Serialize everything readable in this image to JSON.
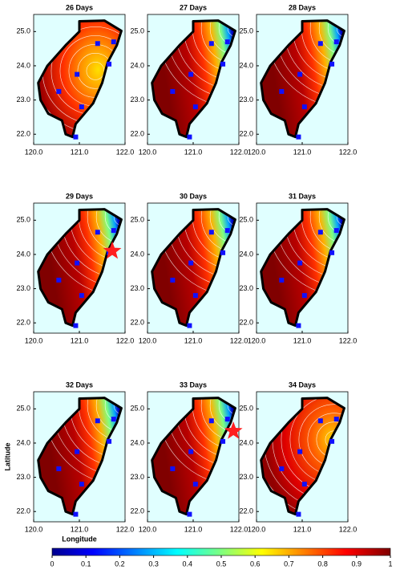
{
  "chart_data": [
    {
      "type": "map",
      "title": "26 Days",
      "xlim": [
        120,
        122
      ],
      "ylim": [
        21.7,
        25.5
      ],
      "xticks": [
        {
          "value": 120,
          "label": "120.0"
        },
        {
          "value": 121,
          "label": "121.0"
        },
        {
          "value": 122,
          "label": "122.0"
        }
      ],
      "yticks": [
        {
          "value": 22,
          "label": "22.0"
        },
        {
          "value": 23,
          "label": "23.0"
        },
        {
          "value": 24,
          "label": "24.0"
        },
        {
          "value": 25,
          "label": "25.0"
        }
      ],
      "stations": {
        "lon": [
          121.4,
          121.75,
          121.65,
          120.95,
          120.55,
          121.05,
          120.92
        ],
        "lat": [
          24.65,
          24.7,
          24.05,
          23.75,
          23.25,
          22.8,
          21.92
        ]
      }
    },
    {
      "type": "map",
      "title": "27 Days",
      "xlim": [
        120,
        122
      ],
      "ylim": [
        21.7,
        25.5
      ],
      "xticks": [
        {
          "value": 120,
          "label": "120.0"
        },
        {
          "value": 121,
          "label": "121.0"
        },
        {
          "value": 122,
          "label": "122.0"
        }
      ],
      "yticks": [
        {
          "value": 22,
          "label": "22.0"
        },
        {
          "value": 23,
          "label": "23.0"
        },
        {
          "value": 24,
          "label": "24.0"
        },
        {
          "value": 25,
          "label": "25.0"
        }
      ],
      "stations": {
        "lon": [
          121.4,
          121.75,
          121.65,
          120.95,
          120.55,
          121.05,
          120.92
        ],
        "lat": [
          24.65,
          24.7,
          24.05,
          23.75,
          23.25,
          22.8,
          21.92
        ]
      }
    },
    {
      "type": "map",
      "title": "28 Days",
      "xlim": [
        120,
        122
      ],
      "ylim": [
        21.7,
        25.5
      ],
      "xticks": [
        {
          "value": 120,
          "label": "120.0"
        },
        {
          "value": 121,
          "label": "121.0"
        },
        {
          "value": 122,
          "label": "122.0"
        }
      ],
      "yticks": [
        {
          "value": 22,
          "label": "22.0"
        },
        {
          "value": 23,
          "label": "23.0"
        },
        {
          "value": 24,
          "label": "24.0"
        },
        {
          "value": 25,
          "label": "25.0"
        }
      ],
      "stations": {
        "lon": [
          121.4,
          121.75,
          121.65,
          120.95,
          120.55,
          121.05,
          120.92
        ],
        "lat": [
          24.65,
          24.7,
          24.05,
          23.75,
          23.25,
          22.8,
          21.92
        ]
      }
    },
    {
      "type": "map",
      "title": "29 Days",
      "xlim": [
        120,
        122
      ],
      "ylim": [
        21.7,
        25.5
      ],
      "xticks": [
        {
          "value": 120,
          "label": "120.0"
        },
        {
          "value": 121,
          "label": "121.0"
        },
        {
          "value": 122,
          "label": "122.0"
        }
      ],
      "yticks": [
        {
          "value": 22,
          "label": "22.0"
        },
        {
          "value": 23,
          "label": "23.0"
        },
        {
          "value": 24,
          "label": "24.0"
        },
        {
          "value": 25,
          "label": "25.0"
        }
      ],
      "stations": {
        "lon": [
          121.4,
          121.75,
          121.65,
          120.95,
          120.55,
          121.05,
          120.92
        ],
        "lat": [
          24.65,
          24.7,
          24.05,
          23.75,
          23.25,
          22.8,
          21.92
        ]
      },
      "star": {
        "lon": 121.72,
        "lat": 24.1
      }
    },
    {
      "type": "map",
      "title": "30 Days",
      "xlim": [
        120,
        122
      ],
      "ylim": [
        21.7,
        25.5
      ],
      "xticks": [
        {
          "value": 120,
          "label": "120.0"
        },
        {
          "value": 121,
          "label": "121.0"
        },
        {
          "value": 122,
          "label": "122.0"
        }
      ],
      "yticks": [
        {
          "value": 22,
          "label": "22.0"
        },
        {
          "value": 23,
          "label": "23.0"
        },
        {
          "value": 24,
          "label": "24.0"
        },
        {
          "value": 25,
          "label": "25.0"
        }
      ],
      "stations": {
        "lon": [
          121.4,
          121.75,
          121.65,
          120.95,
          120.55,
          121.05,
          120.92
        ],
        "lat": [
          24.65,
          24.7,
          24.05,
          23.75,
          23.25,
          22.8,
          21.92
        ]
      }
    },
    {
      "type": "map",
      "title": "31 Days",
      "xlim": [
        120,
        122
      ],
      "ylim": [
        21.7,
        25.5
      ],
      "xticks": [
        {
          "value": 120,
          "label": "120.0"
        },
        {
          "value": 121,
          "label": "121.0"
        },
        {
          "value": 122,
          "label": "122.0"
        }
      ],
      "yticks": [
        {
          "value": 22,
          "label": "22.0"
        },
        {
          "value": 23,
          "label": "23.0"
        },
        {
          "value": 24,
          "label": "24.0"
        },
        {
          "value": 25,
          "label": "25.0"
        }
      ],
      "stations": {
        "lon": [
          121.4,
          121.75,
          121.65,
          120.95,
          120.55,
          121.05,
          120.92
        ],
        "lat": [
          24.65,
          24.7,
          24.05,
          23.75,
          23.25,
          22.8,
          21.92
        ]
      }
    },
    {
      "type": "map",
      "title": "32 Days",
      "xlim": [
        120,
        122
      ],
      "ylim": [
        21.7,
        25.5
      ],
      "xlabel": "Longitude",
      "ylabel": "Latitude",
      "xticks": [
        {
          "value": 120,
          "label": "120.0"
        },
        {
          "value": 121,
          "label": "121.0"
        },
        {
          "value": 122,
          "label": "122.0"
        }
      ],
      "yticks": [
        {
          "value": 22,
          "label": "22.0"
        },
        {
          "value": 23,
          "label": "23.0"
        },
        {
          "value": 24,
          "label": "24.0"
        },
        {
          "value": 25,
          "label": "25.0"
        }
      ],
      "stations": {
        "lon": [
          121.4,
          121.75,
          121.65,
          120.95,
          120.55,
          121.05,
          120.92
        ],
        "lat": [
          24.65,
          24.7,
          24.05,
          23.75,
          23.25,
          22.8,
          21.92
        ]
      }
    },
    {
      "type": "map",
      "title": "33 Days",
      "xlim": [
        120,
        122
      ],
      "ylim": [
        21.7,
        25.5
      ],
      "xticks": [
        {
          "value": 120,
          "label": "120.0"
        },
        {
          "value": 121,
          "label": "121.0"
        },
        {
          "value": 122,
          "label": "122.0"
        }
      ],
      "yticks": [
        {
          "value": 22,
          "label": "22.0"
        },
        {
          "value": 23,
          "label": "23.0"
        },
        {
          "value": 24,
          "label": "24.0"
        },
        {
          "value": 25,
          "label": "25.0"
        }
      ],
      "stations": {
        "lon": [
          121.4,
          121.75,
          121.65,
          120.95,
          120.55,
          121.05,
          120.92
        ],
        "lat": [
          24.65,
          24.7,
          24.05,
          23.75,
          23.25,
          22.8,
          21.92
        ]
      },
      "star": {
        "lon": 121.88,
        "lat": 24.35
      }
    },
    {
      "type": "map",
      "title": "34 Days",
      "xlim": [
        120,
        122
      ],
      "ylim": [
        21.7,
        25.5
      ],
      "xticks": [
        {
          "value": 120,
          "label": "120.0"
        },
        {
          "value": 121,
          "label": "121.0"
        },
        {
          "value": 122,
          "label": "122.0"
        }
      ],
      "yticks": [
        {
          "value": 22,
          "label": "22.0"
        },
        {
          "value": 23,
          "label": "23.0"
        },
        {
          "value": 24,
          "label": "24.0"
        },
        {
          "value": 25,
          "label": "25.0"
        }
      ],
      "stations": {
        "lon": [
          121.4,
          121.75,
          121.65,
          120.95,
          120.55,
          121.05,
          120.92
        ],
        "lat": [
          24.65,
          24.7,
          24.05,
          23.75,
          23.25,
          22.8,
          21.92
        ]
      }
    },
    {
      "type": "colorbar",
      "xlim": [
        0,
        1
      ],
      "xticks": [
        0,
        0.1,
        0.2,
        0.3,
        0.4,
        0.5,
        0.6,
        0.7,
        0.8,
        0.9,
        1
      ]
    }
  ]
}
